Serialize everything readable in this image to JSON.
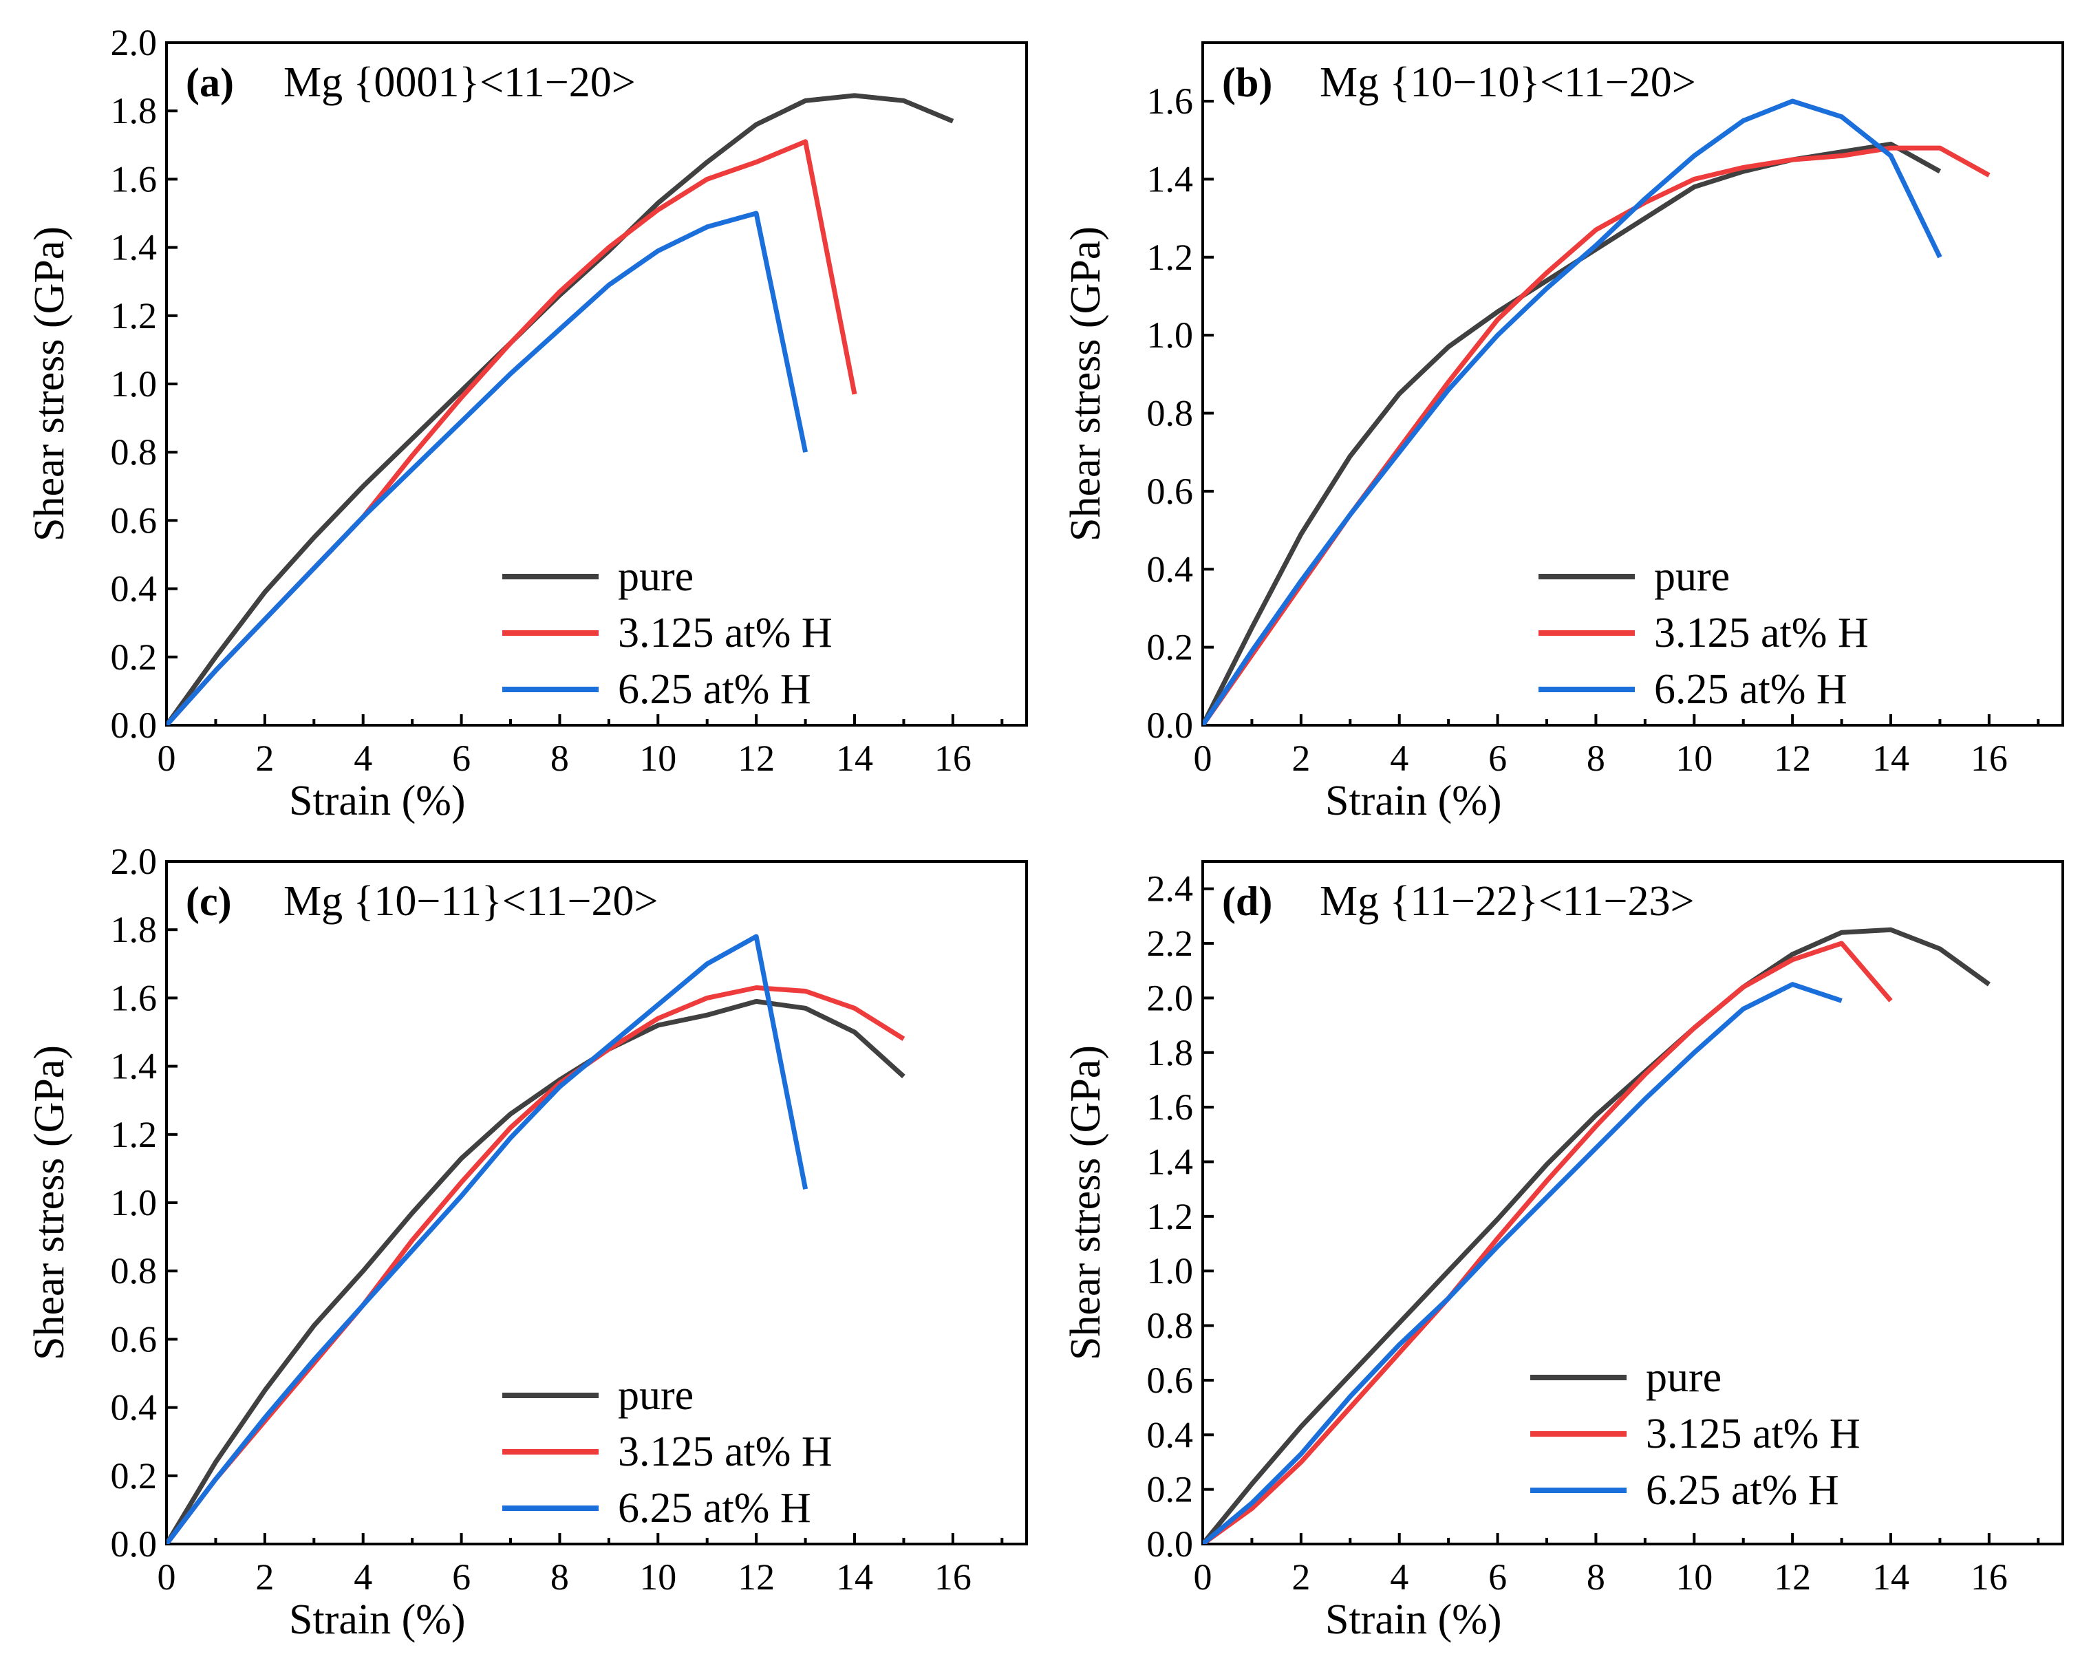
{
  "chart_data": [
    {
      "type": "line",
      "panel_label": "(a)",
      "title": "Mg {0001}<11−20>",
      "xlabel": "Strain (%)",
      "ylabel": "Shear stress (GPa)",
      "xlim": [
        0,
        17.5
      ],
      "ylim": [
        0,
        2.0
      ],
      "xticks": [
        0,
        2,
        4,
        6,
        8,
        10,
        12,
        14,
        16
      ],
      "yticks": [
        0.0,
        0.2,
        0.4,
        0.6,
        0.8,
        1.0,
        1.2,
        1.4,
        1.6,
        1.8,
        2.0
      ],
      "series": [
        {
          "name": "pure",
          "color": "#404040",
          "x": [
            0,
            1,
            2,
            3,
            4,
            5,
            6,
            7,
            8,
            9,
            10,
            11,
            12,
            13,
            14,
            15,
            16
          ],
          "y": [
            0,
            0.2,
            0.39,
            0.55,
            0.7,
            0.84,
            0.98,
            1.12,
            1.26,
            1.39,
            1.53,
            1.65,
            1.76,
            1.83,
            1.845,
            1.83,
            1.77
          ]
        },
        {
          "name": "3.125 at% H",
          "color": "#ee3b3b",
          "x": [
            0,
            1,
            2,
            3,
            4,
            5,
            6,
            7,
            8,
            9,
            10,
            11,
            12,
            13,
            14
          ],
          "y": [
            0,
            0.16,
            0.31,
            0.46,
            0.61,
            0.79,
            0.96,
            1.12,
            1.27,
            1.4,
            1.51,
            1.6,
            1.65,
            1.71,
            0.97
          ]
        },
        {
          "name": "6.25 at% H",
          "color": "#1b6fdb",
          "x": [
            0,
            1,
            2,
            3,
            4,
            5,
            6,
            7,
            8,
            9,
            10,
            11,
            12,
            13
          ],
          "y": [
            0,
            0.16,
            0.31,
            0.46,
            0.61,
            0.75,
            0.89,
            1.03,
            1.16,
            1.29,
            1.39,
            1.46,
            1.5,
            0.8
          ]
        }
      ]
    },
    {
      "type": "line",
      "panel_label": "(b)",
      "title": "Mg {10−10}<11−20>",
      "xlabel": "Strain (%)",
      "ylabel": "Shear stress (GPa)",
      "xlim": [
        0,
        17.5
      ],
      "ylim": [
        0,
        1.75
      ],
      "xticks": [
        0,
        2,
        4,
        6,
        8,
        10,
        12,
        14,
        16
      ],
      "yticks": [
        0.0,
        0.2,
        0.4,
        0.6,
        0.8,
        1.0,
        1.2,
        1.4,
        1.6
      ],
      "series": [
        {
          "name": "pure",
          "color": "#404040",
          "x": [
            0,
            1,
            2,
            3,
            4,
            5,
            6,
            7,
            8,
            9,
            10,
            11,
            12,
            13,
            14,
            15
          ],
          "y": [
            0,
            0.25,
            0.49,
            0.69,
            0.85,
            0.97,
            1.06,
            1.14,
            1.22,
            1.3,
            1.38,
            1.42,
            1.45,
            1.47,
            1.49,
            1.42
          ]
        },
        {
          "name": "3.125 at% H",
          "color": "#ee3b3b",
          "x": [
            0,
            1,
            2,
            3,
            4,
            5,
            6,
            7,
            8,
            9,
            10,
            11,
            12,
            13,
            14,
            15,
            16
          ],
          "y": [
            0,
            0.18,
            0.36,
            0.54,
            0.71,
            0.88,
            1.04,
            1.16,
            1.27,
            1.34,
            1.4,
            1.43,
            1.45,
            1.46,
            1.48,
            1.48,
            1.41
          ]
        },
        {
          "name": "6.25 at% H",
          "color": "#1b6fdb",
          "x": [
            0,
            1,
            2,
            3,
            4,
            5,
            6,
            7,
            8,
            9,
            10,
            11,
            12,
            13,
            14,
            15
          ],
          "y": [
            0,
            0.19,
            0.37,
            0.54,
            0.7,
            0.86,
            1.0,
            1.12,
            1.23,
            1.35,
            1.46,
            1.55,
            1.6,
            1.56,
            1.46,
            1.2
          ]
        }
      ]
    },
    {
      "type": "line",
      "panel_label": "(c)",
      "title": "Mg {10−11}<11−20>",
      "xlabel": "Strain (%)",
      "ylabel": "Shear stress (GPa)",
      "xlim": [
        0,
        17.5
      ],
      "ylim": [
        0,
        2.0
      ],
      "xticks": [
        0,
        2,
        4,
        6,
        8,
        10,
        12,
        14,
        16
      ],
      "yticks": [
        0.0,
        0.2,
        0.4,
        0.6,
        0.8,
        1.0,
        1.2,
        1.4,
        1.6,
        1.8,
        2.0
      ],
      "series": [
        {
          "name": "pure",
          "color": "#404040",
          "x": [
            0,
            1,
            2,
            3,
            4,
            5,
            6,
            7,
            8,
            9,
            10,
            11,
            12,
            13,
            14,
            15
          ],
          "y": [
            0,
            0.24,
            0.45,
            0.64,
            0.8,
            0.97,
            1.13,
            1.26,
            1.36,
            1.45,
            1.52,
            1.55,
            1.59,
            1.57,
            1.5,
            1.37
          ]
        },
        {
          "name": "3.125 at% H",
          "color": "#ee3b3b",
          "x": [
            0,
            1,
            2,
            3,
            4,
            5,
            6,
            7,
            8,
            9,
            10,
            11,
            12,
            13,
            14,
            15
          ],
          "y": [
            0,
            0.19,
            0.36,
            0.53,
            0.7,
            0.89,
            1.06,
            1.22,
            1.35,
            1.45,
            1.54,
            1.6,
            1.63,
            1.62,
            1.57,
            1.48
          ]
        },
        {
          "name": "6.25 at% H",
          "color": "#1b6fdb",
          "x": [
            0,
            1,
            2,
            3,
            4,
            5,
            6,
            7,
            8,
            9,
            10,
            11,
            12,
            13
          ],
          "y": [
            0,
            0.19,
            0.37,
            0.54,
            0.7,
            0.86,
            1.02,
            1.19,
            1.34,
            1.46,
            1.58,
            1.7,
            1.78,
            1.04
          ]
        }
      ]
    },
    {
      "type": "line",
      "panel_label": "(d)",
      "title": "Mg {11−22}<11−23>",
      "xlabel": "Strain (%)",
      "ylabel": "Shear stress (GPa)",
      "xlim": [
        0,
        17.5
      ],
      "ylim": [
        0,
        2.5
      ],
      "xticks": [
        0,
        2,
        4,
        6,
        8,
        10,
        12,
        14,
        16
      ],
      "yticks": [
        0.0,
        0.2,
        0.4,
        0.6,
        0.8,
        1.0,
        1.2,
        1.4,
        1.6,
        1.8,
        2.0,
        2.2,
        2.4
      ],
      "series": [
        {
          "name": "pure",
          "color": "#404040",
          "x": [
            0,
            1,
            2,
            3,
            4,
            5,
            6,
            7,
            8,
            9,
            10,
            11,
            12,
            13,
            14,
            15,
            16
          ],
          "y": [
            0,
            0.22,
            0.43,
            0.62,
            0.81,
            1.0,
            1.19,
            1.39,
            1.57,
            1.73,
            1.89,
            2.04,
            2.16,
            2.24,
            2.25,
            2.18,
            2.05
          ]
        },
        {
          "name": "3.125 at% H",
          "color": "#ee3b3b",
          "x": [
            0,
            1,
            2,
            3,
            4,
            5,
            6,
            7,
            8,
            9,
            10,
            11,
            12,
            13,
            14
          ],
          "y": [
            0,
            0.13,
            0.3,
            0.5,
            0.7,
            0.9,
            1.12,
            1.33,
            1.53,
            1.72,
            1.89,
            2.04,
            2.14,
            2.2,
            1.99
          ]
        },
        {
          "name": "6.25 at% H",
          "color": "#1b6fdb",
          "x": [
            0,
            1,
            2,
            3,
            4,
            5,
            6,
            7,
            8,
            9,
            10,
            11,
            12,
            13
          ],
          "y": [
            0,
            0.15,
            0.33,
            0.54,
            0.73,
            0.9,
            1.09,
            1.27,
            1.45,
            1.63,
            1.8,
            1.96,
            2.05,
            1.99
          ]
        }
      ]
    }
  ]
}
